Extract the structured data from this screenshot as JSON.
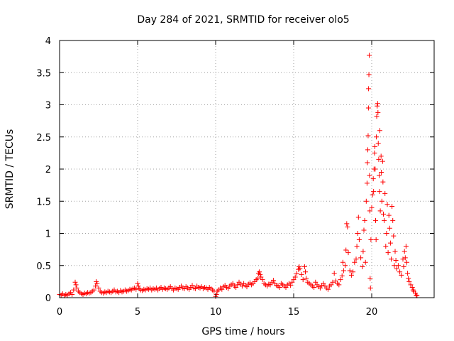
{
  "colors": {
    "points": "#ff0000",
    "axes": "#000000",
    "grid": "#a0a0a0",
    "background": "#ffffff"
  },
  "chart_data": {
    "type": "scatter",
    "title": "Day 284 of 2021, SRMTID for receiver olo5",
    "xlabel": "GPS time / hours",
    "ylabel": "SRMTID / TECUs",
    "xlim": [
      0,
      24
    ],
    "ylim": [
      0,
      4
    ],
    "xticks": [
      0,
      5,
      10,
      15,
      20
    ],
    "yticks": [
      0,
      0.5,
      1,
      1.5,
      2,
      2.5,
      3,
      3.5,
      4
    ],
    "xtick_labels": [
      "0",
      "5",
      "10",
      "15",
      "20"
    ],
    "ytick_labels": [
      "0",
      "0.5",
      "1",
      "1.5",
      "2",
      "2.5",
      "3",
      "3.5",
      "4"
    ],
    "grid": true,
    "marker": "plus",
    "series": [
      {
        "name": "SRMTID",
        "marker": "plus",
        "points": [
          [
            0.0,
            0.05
          ],
          [
            0.1,
            0.04
          ],
          [
            0.2,
            0.06
          ],
          [
            0.3,
            0.03
          ],
          [
            0.4,
            0.05
          ],
          [
            0.5,
            0.04
          ],
          [
            0.6,
            0.06
          ],
          [
            0.7,
            0.08
          ],
          [
            0.8,
            0.05
          ],
          [
            0.9,
            0.12
          ],
          [
            1.0,
            0.24
          ],
          [
            1.05,
            0.2
          ],
          [
            1.1,
            0.15
          ],
          [
            1.2,
            0.1
          ],
          [
            1.3,
            0.08
          ],
          [
            1.4,
            0.06
          ],
          [
            1.5,
            0.05
          ],
          [
            1.6,
            0.07
          ],
          [
            1.7,
            0.06
          ],
          [
            1.8,
            0.08
          ],
          [
            1.9,
            0.07
          ],
          [
            2.0,
            0.08
          ],
          [
            2.1,
            0.1
          ],
          [
            2.2,
            0.12
          ],
          [
            2.3,
            0.18
          ],
          [
            2.35,
            0.25
          ],
          [
            2.4,
            0.22
          ],
          [
            2.5,
            0.15
          ],
          [
            2.6,
            0.1
          ],
          [
            2.7,
            0.08
          ],
          [
            2.8,
            0.07
          ],
          [
            2.9,
            0.09
          ],
          [
            3.0,
            0.08
          ],
          [
            3.1,
            0.1
          ],
          [
            3.2,
            0.09
          ],
          [
            3.3,
            0.08
          ],
          [
            3.4,
            0.1
          ],
          [
            3.5,
            0.12
          ],
          [
            3.6,
            0.09
          ],
          [
            3.7,
            0.1
          ],
          [
            3.8,
            0.08
          ],
          [
            3.9,
            0.11
          ],
          [
            4.0,
            0.09
          ],
          [
            4.1,
            0.1
          ],
          [
            4.2,
            0.12
          ],
          [
            4.3,
            0.1
          ],
          [
            4.4,
            0.11
          ],
          [
            4.5,
            0.13
          ],
          [
            4.6,
            0.12
          ],
          [
            4.7,
            0.14
          ],
          [
            4.8,
            0.15
          ],
          [
            4.9,
            0.13
          ],
          [
            5.0,
            0.22
          ],
          [
            5.05,
            0.18
          ],
          [
            5.1,
            0.14
          ],
          [
            5.2,
            0.12
          ],
          [
            5.3,
            0.11
          ],
          [
            5.4,
            0.13
          ],
          [
            5.5,
            0.12
          ],
          [
            5.6,
            0.14
          ],
          [
            5.7,
            0.13
          ],
          [
            5.8,
            0.15
          ],
          [
            5.9,
            0.12
          ],
          [
            6.0,
            0.14
          ],
          [
            6.1,
            0.13
          ],
          [
            6.2,
            0.15
          ],
          [
            6.3,
            0.12
          ],
          [
            6.4,
            0.14
          ],
          [
            6.5,
            0.16
          ],
          [
            6.6,
            0.13
          ],
          [
            6.7,
            0.15
          ],
          [
            6.8,
            0.14
          ],
          [
            6.9,
            0.13
          ],
          [
            7.0,
            0.15
          ],
          [
            7.1,
            0.17
          ],
          [
            7.2,
            0.14
          ],
          [
            7.3,
            0.12
          ],
          [
            7.4,
            0.15
          ],
          [
            7.5,
            0.14
          ],
          [
            7.6,
            0.13
          ],
          [
            7.7,
            0.16
          ],
          [
            7.8,
            0.18
          ],
          [
            7.9,
            0.15
          ],
          [
            8.0,
            0.14
          ],
          [
            8.1,
            0.17
          ],
          [
            8.2,
            0.15
          ],
          [
            8.3,
            0.13
          ],
          [
            8.4,
            0.16
          ],
          [
            8.5,
            0.19
          ],
          [
            8.6,
            0.15
          ],
          [
            8.7,
            0.14
          ],
          [
            8.8,
            0.18
          ],
          [
            8.9,
            0.16
          ],
          [
            9.0,
            0.15
          ],
          [
            9.1,
            0.17
          ],
          [
            9.2,
            0.14
          ],
          [
            9.3,
            0.16
          ],
          [
            9.4,
            0.15
          ],
          [
            9.5,
            0.13
          ],
          [
            9.6,
            0.16
          ],
          [
            9.7,
            0.14
          ],
          [
            9.8,
            0.12
          ],
          [
            9.9,
            0.1
          ],
          [
            10.0,
            0.02
          ],
          [
            10.05,
            0.05
          ],
          [
            10.1,
            0.1
          ],
          [
            10.2,
            0.12
          ],
          [
            10.3,
            0.15
          ],
          [
            10.4,
            0.13
          ],
          [
            10.5,
            0.17
          ],
          [
            10.6,
            0.19
          ],
          [
            10.7,
            0.16
          ],
          [
            10.8,
            0.14
          ],
          [
            10.9,
            0.18
          ],
          [
            11.0,
            0.2
          ],
          [
            11.1,
            0.22
          ],
          [
            11.2,
            0.18
          ],
          [
            11.3,
            0.16
          ],
          [
            11.4,
            0.2
          ],
          [
            11.5,
            0.24
          ],
          [
            11.6,
            0.21
          ],
          [
            11.7,
            0.18
          ],
          [
            11.8,
            0.22
          ],
          [
            11.9,
            0.19
          ],
          [
            12.0,
            0.17
          ],
          [
            12.1,
            0.21
          ],
          [
            12.2,
            0.23
          ],
          [
            12.3,
            0.2
          ],
          [
            12.4,
            0.22
          ],
          [
            12.5,
            0.25
          ],
          [
            12.6,
            0.28
          ],
          [
            12.7,
            0.3
          ],
          [
            12.75,
            0.38
          ],
          [
            12.8,
            0.4
          ],
          [
            12.85,
            0.36
          ],
          [
            12.9,
            0.32
          ],
          [
            13.0,
            0.28
          ],
          [
            13.1,
            0.22
          ],
          [
            13.2,
            0.2
          ],
          [
            13.3,
            0.18
          ],
          [
            13.4,
            0.21
          ],
          [
            13.5,
            0.2
          ],
          [
            13.6,
            0.24
          ],
          [
            13.7,
            0.27
          ],
          [
            13.8,
            0.22
          ],
          [
            13.9,
            0.19
          ],
          [
            14.0,
            0.18
          ],
          [
            14.1,
            0.16
          ],
          [
            14.2,
            0.22
          ],
          [
            14.3,
            0.2
          ],
          [
            14.4,
            0.18
          ],
          [
            14.5,
            0.16
          ],
          [
            14.6,
            0.2
          ],
          [
            14.7,
            0.22
          ],
          [
            14.8,
            0.19
          ],
          [
            14.9,
            0.24
          ],
          [
            15.0,
            0.28
          ],
          [
            15.1,
            0.32
          ],
          [
            15.2,
            0.38
          ],
          [
            15.3,
            0.44
          ],
          [
            15.35,
            0.48
          ],
          [
            15.4,
            0.45
          ],
          [
            15.5,
            0.36
          ],
          [
            15.6,
            0.28
          ],
          [
            15.7,
            0.48
          ],
          [
            15.75,
            0.4
          ],
          [
            15.8,
            0.3
          ],
          [
            15.9,
            0.24
          ],
          [
            16.0,
            0.22
          ],
          [
            16.1,
            0.2
          ],
          [
            16.2,
            0.18
          ],
          [
            16.3,
            0.16
          ],
          [
            16.4,
            0.24
          ],
          [
            16.5,
            0.2
          ],
          [
            16.6,
            0.17
          ],
          [
            16.7,
            0.15
          ],
          [
            16.8,
            0.19
          ],
          [
            16.9,
            0.22
          ],
          [
            17.0,
            0.18
          ],
          [
            17.1,
            0.15
          ],
          [
            17.2,
            0.13
          ],
          [
            17.3,
            0.18
          ],
          [
            17.4,
            0.2
          ],
          [
            17.5,
            0.24
          ],
          [
            17.6,
            0.38
          ],
          [
            17.7,
            0.26
          ],
          [
            17.8,
            0.22
          ],
          [
            17.9,
            0.2
          ],
          [
            18.0,
            0.28
          ],
          [
            18.1,
            0.34
          ],
          [
            18.15,
            0.55
          ],
          [
            18.2,
            0.42
          ],
          [
            18.3,
            0.5
          ],
          [
            18.35,
            0.74
          ],
          [
            18.4,
            1.15
          ],
          [
            18.45,
            1.1
          ],
          [
            18.5,
            0.7
          ],
          [
            18.6,
            0.42
          ],
          [
            18.7,
            0.35
          ],
          [
            18.8,
            0.4
          ],
          [
            18.9,
            0.55
          ],
          [
            19.0,
            0.6
          ],
          [
            19.05,
            0.8
          ],
          [
            19.1,
            1.0
          ],
          [
            19.15,
            1.25
          ],
          [
            19.2,
            0.9
          ],
          [
            19.3,
            0.62
          ],
          [
            19.4,
            0.48
          ],
          [
            19.45,
            0.72
          ],
          [
            19.5,
            1.05
          ],
          [
            19.55,
            1.2
          ],
          [
            19.6,
            0.55
          ],
          [
            19.65,
            1.5
          ],
          [
            19.7,
            1.78
          ],
          [
            19.72,
            2.1
          ],
          [
            19.75,
            2.3
          ],
          [
            19.77,
            2.52
          ],
          [
            19.79,
            2.95
          ],
          [
            19.8,
            3.25
          ],
          [
            19.82,
            3.47
          ],
          [
            19.84,
            3.77
          ],
          [
            19.86,
            1.9
          ],
          [
            19.88,
            1.35
          ],
          [
            19.9,
            0.3
          ],
          [
            19.92,
            0.15
          ],
          [
            19.95,
            0.9
          ],
          [
            20.0,
            1.4
          ],
          [
            20.05,
            1.6
          ],
          [
            20.1,
            1.85
          ],
          [
            20.12,
            1.65
          ],
          [
            20.15,
            2.0
          ],
          [
            20.18,
            2.25
          ],
          [
            20.2,
            2.35
          ],
          [
            20.22,
            2.0
          ],
          [
            20.25,
            1.2
          ],
          [
            20.28,
            0.9
          ],
          [
            20.3,
            2.5
          ],
          [
            20.32,
            2.82
          ],
          [
            20.35,
            2.98
          ],
          [
            20.38,
            3.02
          ],
          [
            20.4,
            2.88
          ],
          [
            20.42,
            2.4
          ],
          [
            20.45,
            2.15
          ],
          [
            20.48,
            1.9
          ],
          [
            20.5,
            1.65
          ],
          [
            20.52,
            2.6
          ],
          [
            20.55,
            1.35
          ],
          [
            20.6,
            2.2
          ],
          [
            20.62,
            1.95
          ],
          [
            20.65,
            1.5
          ],
          [
            20.7,
            2.12
          ],
          [
            20.72,
            1.8
          ],
          [
            20.75,
            1.3
          ],
          [
            20.8,
            1.2
          ],
          [
            20.85,
            1.62
          ],
          [
            20.9,
            0.8
          ],
          [
            20.95,
            1.0
          ],
          [
            21.0,
            1.45
          ],
          [
            21.05,
            0.7
          ],
          [
            21.1,
            1.28
          ],
          [
            21.15,
            1.08
          ],
          [
            21.2,
            0.85
          ],
          [
            21.25,
            0.6
          ],
          [
            21.3,
            1.42
          ],
          [
            21.35,
            1.2
          ],
          [
            21.4,
            0.96
          ],
          [
            21.45,
            0.5
          ],
          [
            21.5,
            0.72
          ],
          [
            21.55,
            0.58
          ],
          [
            21.6,
            0.45
          ],
          [
            21.7,
            0.5
          ],
          [
            21.8,
            0.4
          ],
          [
            21.9,
            0.35
          ],
          [
            22.0,
            0.6
          ],
          [
            22.05,
            0.48
          ],
          [
            22.1,
            0.72
          ],
          [
            22.15,
            0.62
          ],
          [
            22.2,
            0.8
          ],
          [
            22.25,
            0.55
          ],
          [
            22.3,
            0.38
          ],
          [
            22.35,
            0.3
          ],
          [
            22.4,
            0.25
          ],
          [
            22.5,
            0.2
          ],
          [
            22.6,
            0.16
          ],
          [
            22.65,
            0.12
          ],
          [
            22.7,
            0.1
          ],
          [
            22.8,
            0.07
          ],
          [
            22.85,
            0.04
          ],
          [
            22.9,
            0.03
          ]
        ]
      }
    ]
  }
}
